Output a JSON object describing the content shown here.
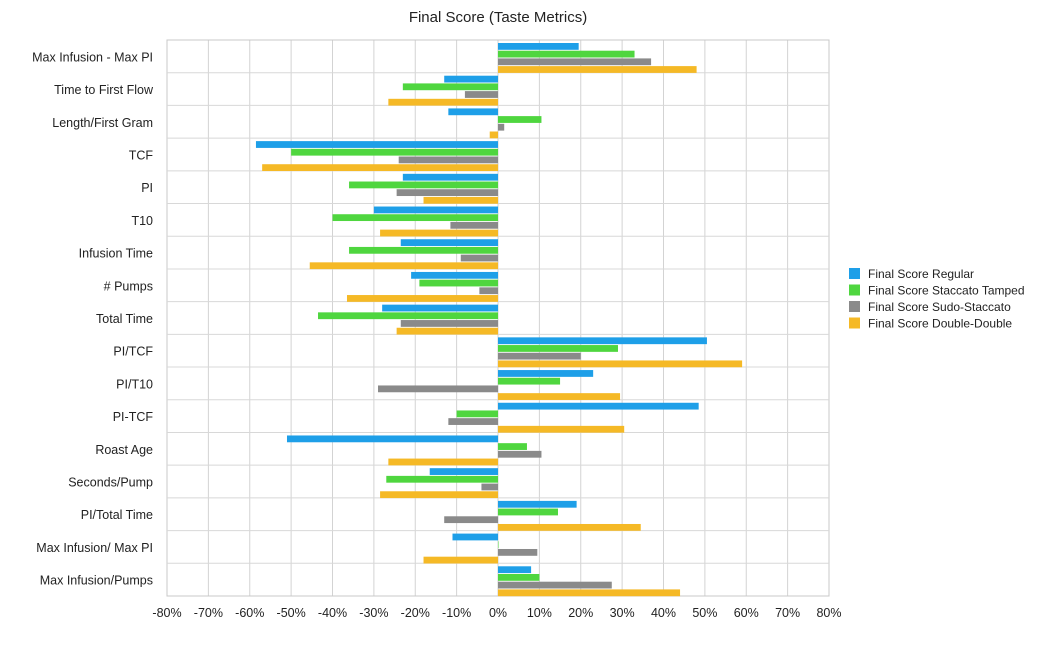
{
  "chart_data": {
    "type": "bar",
    "orientation": "horizontal",
    "title": "Final Score (Taste Metrics)",
    "xlabel": "",
    "ylabel": "",
    "xlim": [
      -80,
      80
    ],
    "x_ticks": [
      -80,
      -70,
      -60,
      -50,
      -40,
      -30,
      -20,
      -10,
      0,
      10,
      20,
      30,
      40,
      50,
      60,
      70,
      80
    ],
    "tick_format": "percent",
    "grid": true,
    "legend_position": "right",
    "categories": [
      "Max Infusion - Max PI",
      "Time to First Flow",
      "Length/First Gram",
      "TCF",
      "PI",
      "T10",
      "Infusion Time",
      "# Pumps",
      "Total Time",
      "PI/TCF",
      "PI/T10",
      "PI-TCF",
      "Roast Age",
      "Seconds/Pump",
      "PI/Total Time",
      "Max Infusion/ Max PI",
      "Max Infusion/Pumps"
    ],
    "series": [
      {
        "name": "Final Score Regular",
        "color": "#1e9fe8",
        "values": [
          19.5,
          -13,
          -12,
          -58.5,
          -23,
          -30,
          -23.5,
          -21,
          -28,
          50.5,
          23,
          48.5,
          -51,
          -16.5,
          19,
          -11,
          8
        ]
      },
      {
        "name": "Final Score Staccato Tamped",
        "color": "#4fd63f",
        "values": [
          33,
          -23,
          10.5,
          -50,
          -36,
          -40,
          -36,
          -19,
          -43.5,
          29,
          15,
          -10,
          7,
          -27,
          14.5,
          0,
          10
        ]
      },
      {
        "name": "Final Score Sudo-Staccato",
        "color": "#8a8a8a",
        "values": [
          37,
          -8,
          1.5,
          -24,
          -24.5,
          -11.5,
          -9,
          -4.5,
          -23.5,
          20,
          -29,
          -12,
          10.5,
          -4,
          -13,
          9.5,
          27.5
        ]
      },
      {
        "name": "Final Score Double-Double",
        "color": "#f5b926",
        "values": [
          48,
          -26.5,
          -2,
          -57,
          -18,
          -28.5,
          -45.5,
          -36.5,
          -24.5,
          59,
          29.5,
          30.5,
          -26.5,
          -28.5,
          34.5,
          -18,
          44
        ]
      }
    ]
  }
}
